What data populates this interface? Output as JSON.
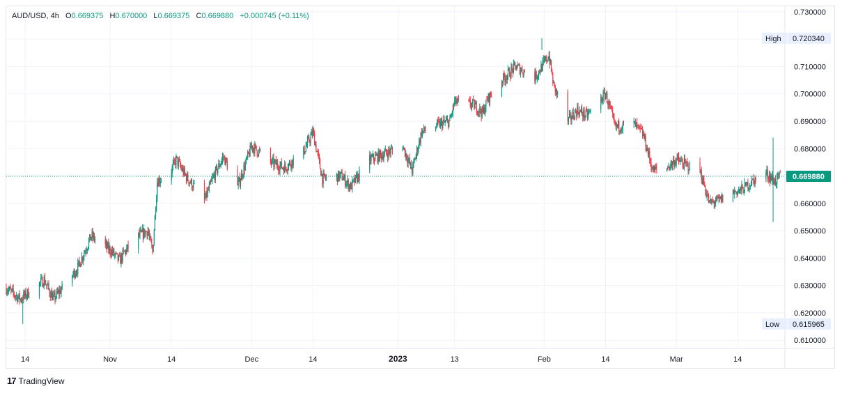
{
  "legend": {
    "symbol": "AUD/USD",
    "interval": "4h",
    "open_label": "O",
    "open": "0.669375",
    "high_label": "H",
    "high": "0.670000",
    "low_label": "L",
    "low": "0.669375",
    "close_label": "C",
    "close": "0.669880",
    "change": "+0.000745 (+0.11%)"
  },
  "footer": {
    "brand": "TradingView"
  },
  "colors": {
    "up": "#089981",
    "down": "#f23645",
    "grid": "#f0f3fa",
    "axis_text": "#131722",
    "badge_bg": "#e8f0fe"
  },
  "chart_data": {
    "type": "candlestick",
    "y_ticks": [
      "0.730000",
      "0.720000",
      "0.710000",
      "0.700000",
      "0.690000",
      "0.680000",
      "0.670000",
      "0.660000",
      "0.650000",
      "0.640000",
      "0.630000",
      "0.620000",
      "0.610000"
    ],
    "ylim": [
      0.607,
      0.732
    ],
    "x_ticks": [
      "14",
      "Nov",
      "14",
      "Dec",
      "14",
      "2023",
      "13",
      "Feb",
      "14",
      "Mar",
      "14"
    ],
    "x_tick_dates": [
      "2022-10-14",
      "2022-11-01",
      "2022-11-14",
      "2022-12-01",
      "2022-12-14",
      "2023-01-01",
      "2023-01-13",
      "2023-02-01",
      "2023-02-14",
      "2023-03-01",
      "2023-03-14"
    ],
    "bold_ticks": [
      "2023"
    ],
    "high_marker": {
      "label": "High",
      "value": "0.720340"
    },
    "low_marker": {
      "label": "Low",
      "value": "0.615965"
    },
    "last_price": {
      "value": "0.669880",
      "num": 0.66988
    },
    "grid": true,
    "series_path": [
      [
        "2022-10-10",
        0.629
      ],
      [
        "2022-10-13",
        0.625
      ],
      [
        "2022-10-18",
        0.632
      ],
      [
        "2022-10-20",
        0.625
      ],
      [
        "2022-10-25",
        0.636
      ],
      [
        "2022-10-28",
        0.648
      ],
      [
        "2022-11-01",
        0.643
      ],
      [
        "2022-11-03",
        0.639
      ],
      [
        "2022-11-04",
        0.642
      ],
      [
        "2022-11-07",
        0.648
      ],
      [
        "2022-11-09",
        0.65
      ],
      [
        "2022-11-10",
        0.642
      ],
      [
        "2022-11-11",
        0.668
      ],
      [
        "2022-11-14",
        0.672
      ],
      [
        "2022-11-15",
        0.676
      ],
      [
        "2022-11-17",
        0.67
      ],
      [
        "2022-11-21",
        0.661
      ],
      [
        "2022-11-23",
        0.67
      ],
      [
        "2022-11-25",
        0.677
      ],
      [
        "2022-11-28",
        0.666
      ],
      [
        "2022-12-01",
        0.681
      ],
      [
        "2022-12-05",
        0.675
      ],
      [
        "2022-12-08",
        0.673
      ],
      [
        "2022-12-12",
        0.679
      ],
      [
        "2022-12-14",
        0.686
      ],
      [
        "2022-12-16",
        0.669
      ],
      [
        "2022-12-20",
        0.67
      ],
      [
        "2022-12-22",
        0.666
      ],
      [
        "2022-12-26",
        0.676
      ],
      [
        "2022-12-29",
        0.678
      ],
      [
        "2023-01-02",
        0.681
      ],
      [
        "2023-01-04",
        0.672
      ],
      [
        "2023-01-06",
        0.686
      ],
      [
        "2023-01-10",
        0.689
      ],
      [
        "2023-01-12",
        0.69
      ],
      [
        "2023-01-13",
        0.697
      ],
      [
        "2023-01-17",
        0.696
      ],
      [
        "2023-01-19",
        0.693
      ],
      [
        "2023-01-20",
        0.698
      ],
      [
        "2023-01-23",
        0.705
      ],
      [
        "2023-01-26",
        0.71
      ],
      [
        "2023-01-27",
        0.709
      ],
      [
        "2023-01-30",
        0.706
      ],
      [
        "2023-02-02",
        0.714
      ],
      [
        "2023-02-03",
        0.703
      ],
      [
        "2023-02-06",
        0.69
      ],
      [
        "2023-02-08",
        0.694
      ],
      [
        "2023-02-10",
        0.692
      ],
      [
        "2023-02-14",
        0.7
      ],
      [
        "2023-02-16",
        0.688
      ],
      [
        "2023-02-20",
        0.689
      ],
      [
        "2023-02-22",
        0.685
      ],
      [
        "2023-02-24",
        0.672
      ],
      [
        "2023-02-27",
        0.673
      ],
      [
        "2023-03-01",
        0.676
      ],
      [
        "2023-03-03",
        0.674
      ],
      [
        "2023-03-06",
        0.672
      ],
      [
        "2023-03-08",
        0.66
      ],
      [
        "2023-03-10",
        0.661
      ],
      [
        "2023-03-13",
        0.664
      ],
      [
        "2023-03-15",
        0.665
      ],
      [
        "2023-03-17",
        0.668
      ],
      [
        "2023-03-20",
        0.671
      ],
      [
        "2023-03-22",
        0.668
      ],
      [
        "2023-03-23",
        0.67
      ]
    ],
    "wick_overrides": [
      [
        "2023-01-31",
        0.716,
        0.7203
      ],
      [
        "2023-03-21",
        0.665,
        0.684
      ],
      [
        "2023-03-21",
        0.6532,
        0.665
      ],
      [
        "2022-10-13",
        0.61597,
        0.624
      ]
    ]
  }
}
